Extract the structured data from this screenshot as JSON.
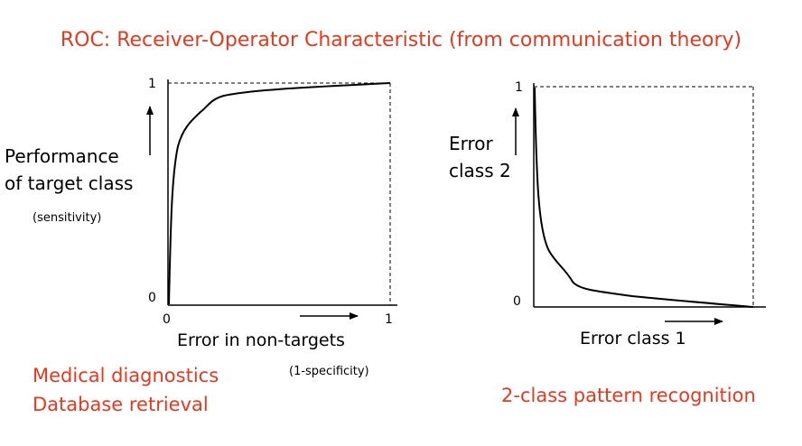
{
  "title": "ROC: Receiver-Operator Characteristic (from communication theory)",
  "colors": {
    "accent": "#e8381e",
    "line": "#000000"
  },
  "left_plot": {
    "y_label_line1": "Performance",
    "y_label_line2": "of target class",
    "y_sublabel": "(sensitivity)",
    "x_label": "Error in non-targets",
    "x_sublabel": "(1-specificity)",
    "y_tick_top": "1",
    "y_tick_bottom": "0",
    "x_tick_left": "0",
    "x_tick_right": "1",
    "applications_line1": "Medical diagnostics",
    "applications_line2": "Database retrieval"
  },
  "right_plot": {
    "y_label_line1": "Error",
    "y_label_line2": "class 2",
    "x_label": "Error class 1",
    "y_tick_top": "1",
    "y_tick_bottom": "0",
    "caption": "2-class pattern recognition"
  }
}
